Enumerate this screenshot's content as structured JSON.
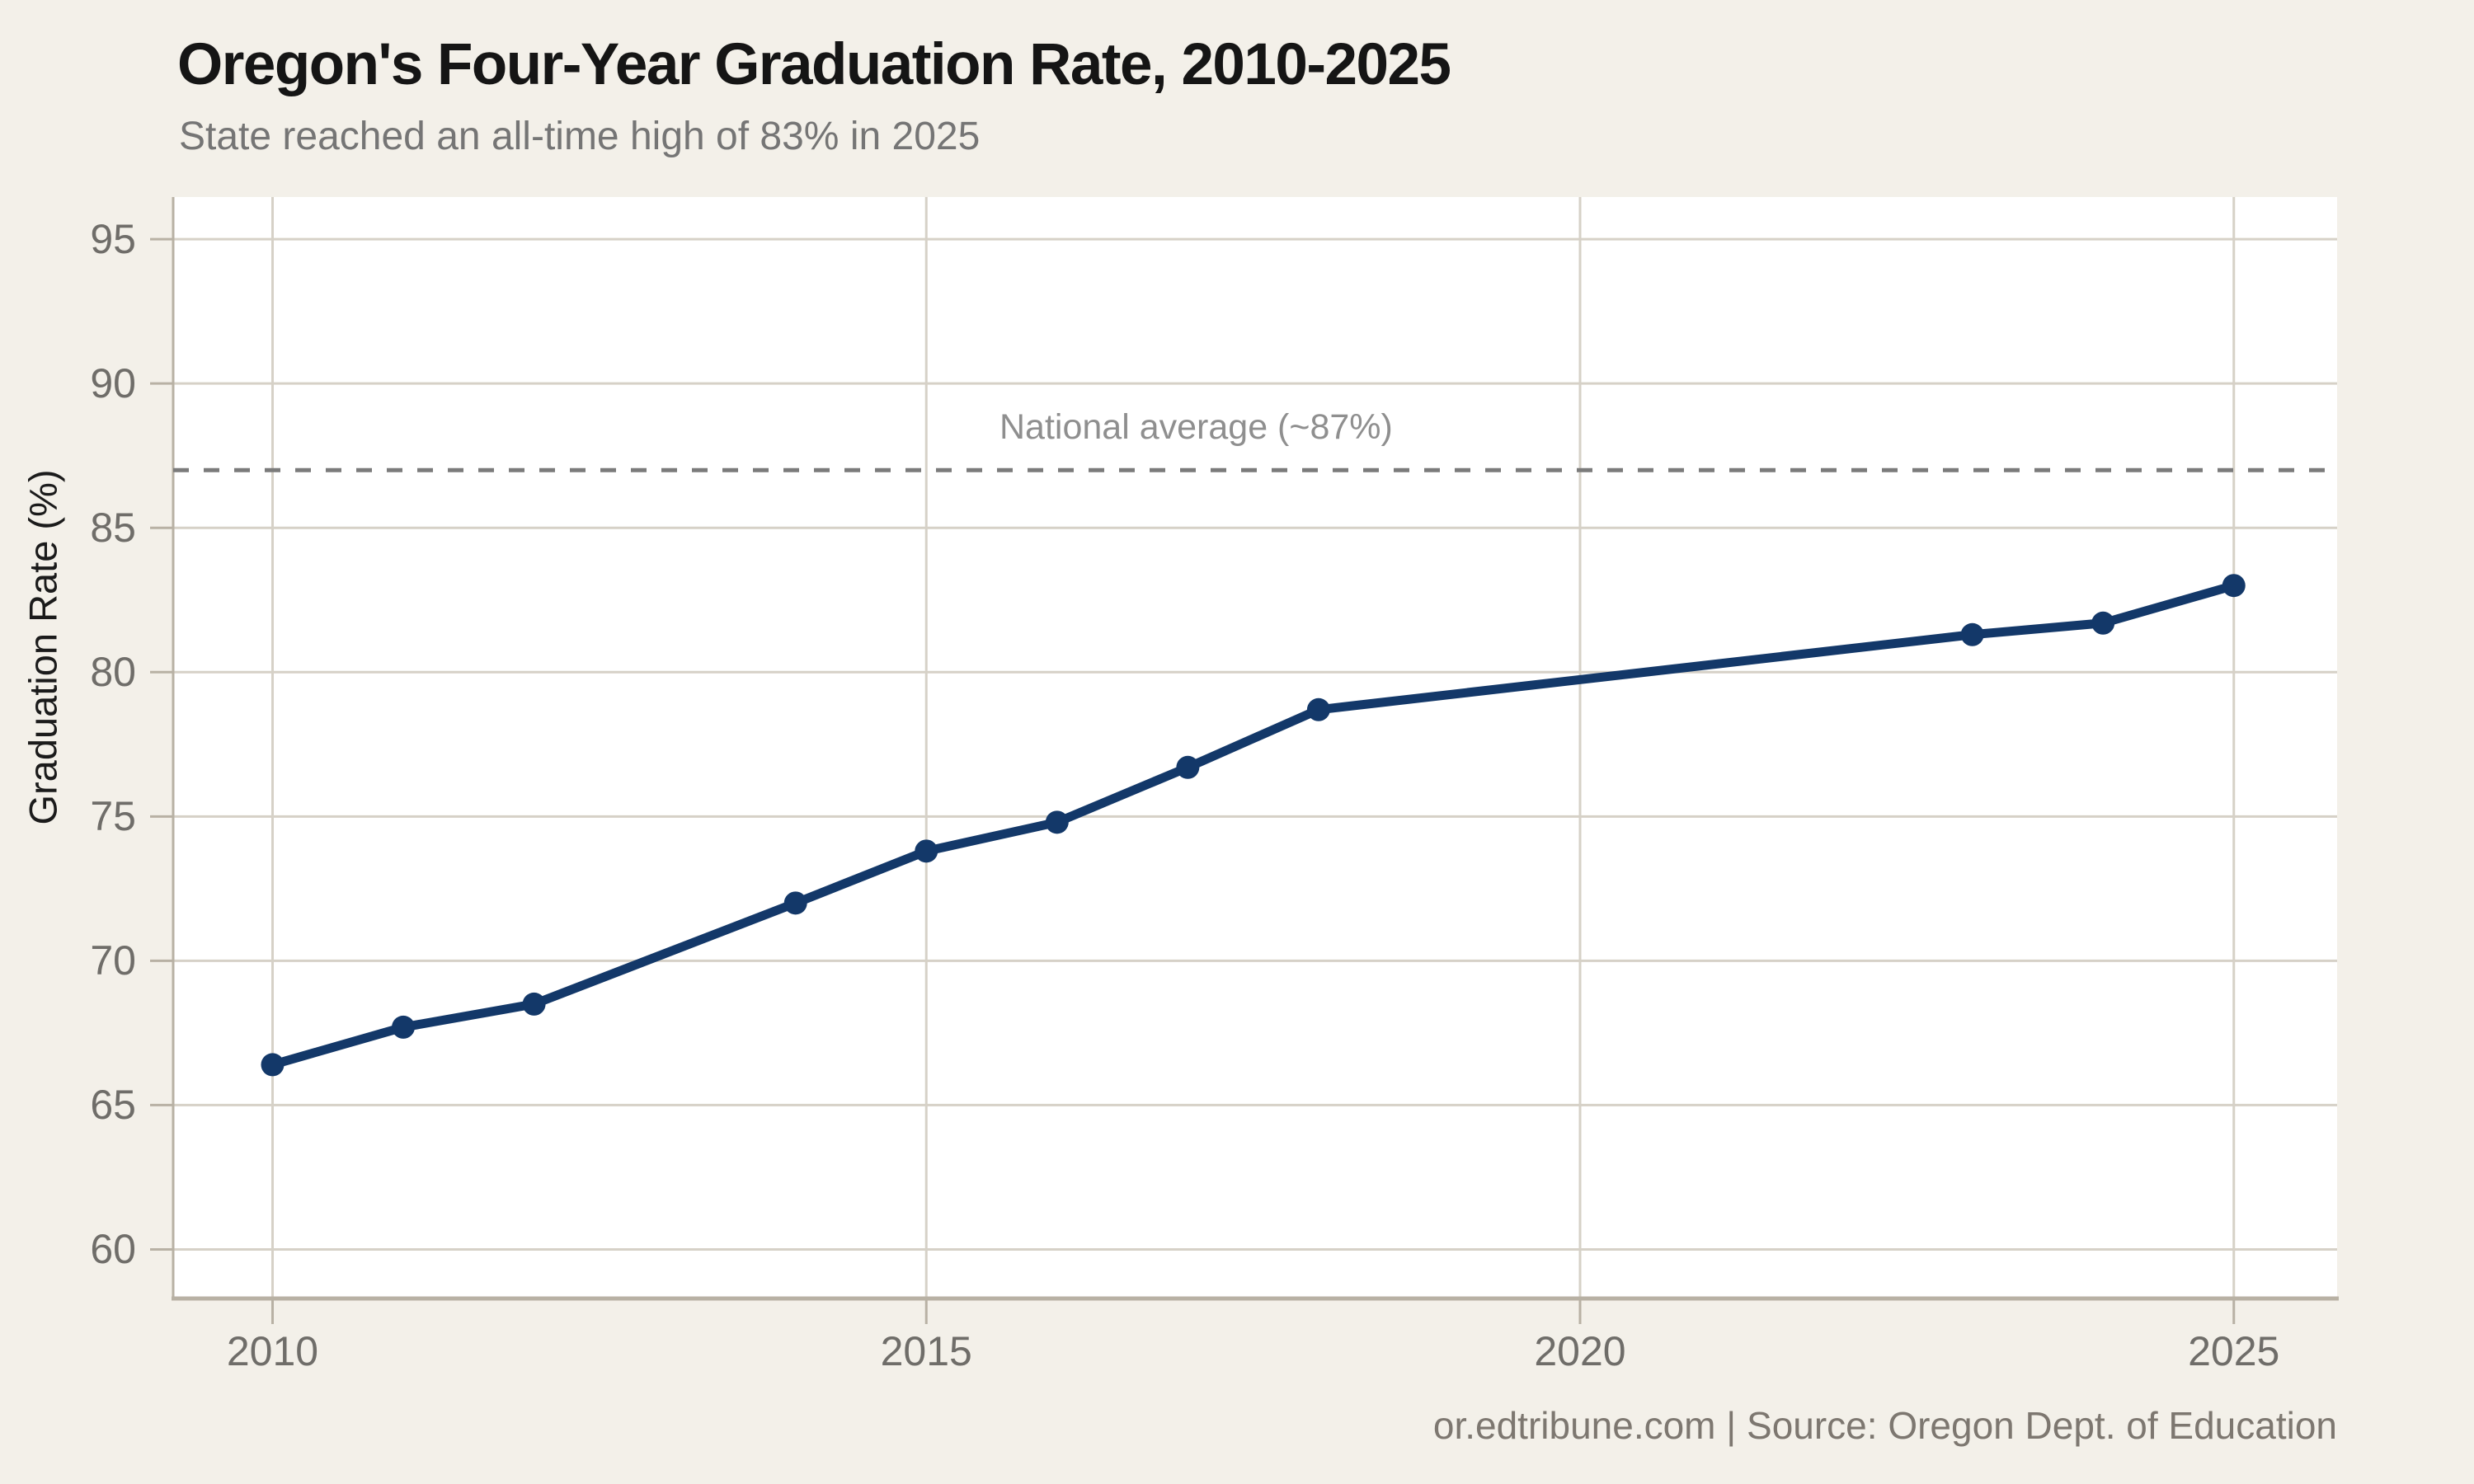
{
  "chart_data": {
    "type": "line",
    "title": "Oregon's Four-Year Graduation Rate, 2010-2025",
    "subtitle": "State reached an all-time high of 83% in 2025",
    "xlabel": "",
    "ylabel": "Graduation Rate (%)",
    "x": [
      2010,
      2011,
      2012,
      2014,
      2015,
      2016,
      2017,
      2018,
      2023,
      2024,
      2025
    ],
    "y": [
      66.4,
      67.7,
      68.5,
      72.0,
      73.8,
      74.8,
      76.7,
      78.7,
      81.3,
      81.7,
      83.0
    ],
    "xticks": [
      2010,
      2015,
      2020,
      2025
    ],
    "yticks": [
      60,
      65,
      70,
      75,
      80,
      85,
      90,
      95
    ],
    "xlim": [
      2009.24,
      2025.79
    ],
    "ylim": [
      58.3,
      96.46
    ],
    "grid": true,
    "legend": "none",
    "reference_line": {
      "value": 87,
      "label": "National average (~87%)"
    },
    "marker": "circle",
    "colors": {
      "background": "#f3f0e9",
      "plot_background": "#ffffff",
      "grid": "#d6d1c7",
      "axis": "#b8b1a4",
      "line": "#133869",
      "reference": "#7b7b7b",
      "title_text": "#151515",
      "muted_text": "#757575",
      "axis_title_text": "#1b1b1b",
      "tick_text": "#6f6d69",
      "annotation_text": "#8f8f8f",
      "footer_text": "#7d7770"
    }
  },
  "footer": {
    "credit": "or.edtribune.com | Source: Oregon Dept. of Education"
  }
}
